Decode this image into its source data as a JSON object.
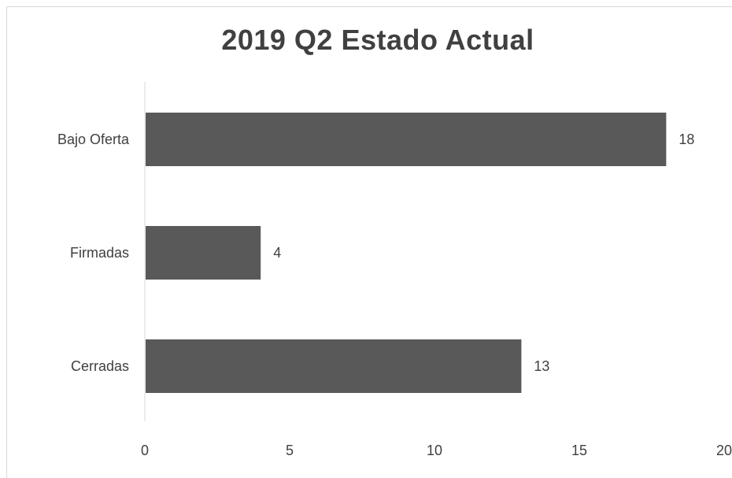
{
  "chart_data": {
    "type": "bar",
    "orientation": "horizontal",
    "title": "2019 Q2 Estado  Actual",
    "categories": [
      "Bajo Oferta",
      "Firmadas",
      "Cerradas"
    ],
    "values": [
      18,
      4,
      13
    ],
    "data_labels": [
      "18",
      "4",
      "13"
    ],
    "xlim": [
      0,
      20
    ],
    "x_ticks": [
      0,
      5,
      10,
      15,
      20
    ],
    "x_tick_labels": [
      "0",
      "5",
      "10",
      "15",
      "20"
    ],
    "grid": false,
    "legend": "none",
    "colors": {
      "bar": "#595959",
      "axis": "#d9d9d9",
      "text": "#404040"
    }
  }
}
